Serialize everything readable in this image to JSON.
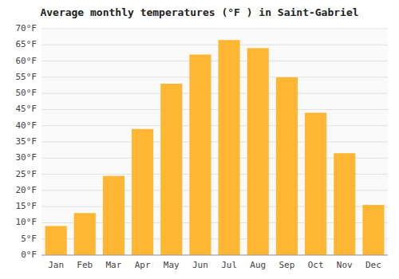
{
  "chart_data": {
    "type": "bar",
    "title": "Average monthly temperatures (°F ) in Saint-Gabriel",
    "categories": [
      "Jan",
      "Feb",
      "Mar",
      "Apr",
      "May",
      "Jun",
      "Jul",
      "Aug",
      "Sep",
      "Oct",
      "Nov",
      "Dec"
    ],
    "values": [
      9,
      13,
      24.5,
      39,
      53,
      62,
      66.5,
      64,
      55,
      44,
      31.5,
      15.5
    ],
    "color": "#FFB733",
    "ylim": [
      0,
      70
    ],
    "yticks": [
      {
        "value": 0,
        "label": "0°F"
      },
      {
        "value": 5,
        "label": "5°F"
      },
      {
        "value": 10,
        "label": "10°F"
      },
      {
        "value": 15,
        "label": "15°F"
      },
      {
        "value": 20,
        "label": "20°F"
      },
      {
        "value": 25,
        "label": "25°F"
      },
      {
        "value": 30,
        "label": "30°F"
      },
      {
        "value": 35,
        "label": "35°F"
      },
      {
        "value": 40,
        "label": "40°F"
      },
      {
        "value": 45,
        "label": "45°F"
      },
      {
        "value": 50,
        "label": "50°F"
      },
      {
        "value": 55,
        "label": "55°F"
      },
      {
        "value": 60,
        "label": "60°F"
      },
      {
        "value": 65,
        "label": "65°F"
      },
      {
        "value": 70,
        "label": "70°F"
      }
    ],
    "grid": true
  }
}
